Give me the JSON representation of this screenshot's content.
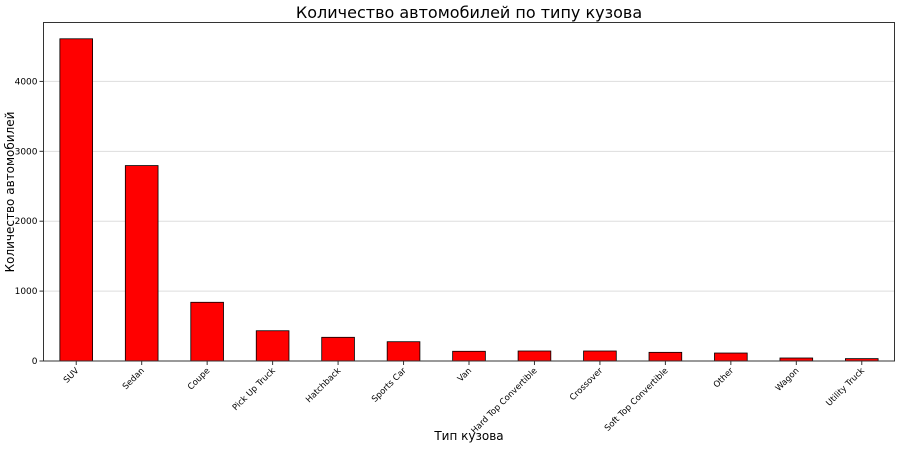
{
  "chart_data": {
    "type": "bar",
    "title": "Количество автомобилей по типу кузова",
    "xlabel": "Тип кузова",
    "ylabel": "Количество автомобилей",
    "categories": [
      "SUV",
      "Sedan",
      "Coupe",
      "Pick Up Truck",
      "Hatchback",
      "Sports Car",
      "Van",
      "Hard Top Convertible",
      "Crossover",
      "Soft Top Convertible",
      "Other",
      "Wagon",
      "Utility Truck"
    ],
    "values": [
      4610,
      2796,
      840,
      433,
      339,
      276,
      139,
      143,
      143,
      124,
      114,
      43,
      34
    ],
    "ylim": [
      0,
      4843
    ],
    "yticks": [
      0,
      1000,
      2000,
      3000,
      4000
    ],
    "grid": "y",
    "bar_color": "#ff0000",
    "edge_color": "#000000"
  }
}
